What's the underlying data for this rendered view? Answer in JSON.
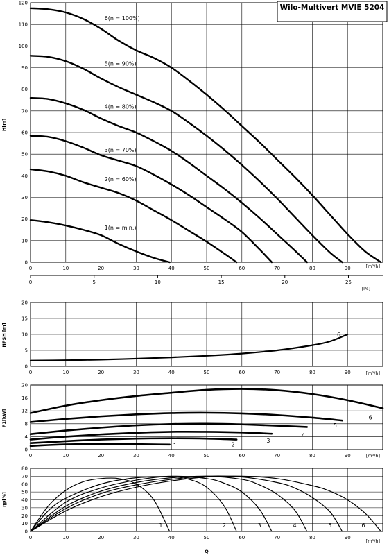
{
  "title": "Wilo-Multivert MVIE 5204",
  "x_unit": "[m³/h]",
  "ls_unit": "[l/s]",
  "q_label": "Q",
  "chart_data": [
    {
      "id": "head",
      "type": "line",
      "ylabel": "H[m]",
      "xlim": [
        0,
        100
      ],
      "ylim": [
        0,
        120
      ],
      "xticks": [
        0,
        10,
        20,
        30,
        40,
        50,
        60,
        70,
        80,
        90
      ],
      "yticks": [
        0,
        10,
        20,
        30,
        40,
        50,
        60,
        70,
        80,
        90,
        100,
        110,
        120
      ],
      "series": [
        {
          "name": "1(n = min.)",
          "label_at": [
            21,
            16
          ],
          "x": [
            0,
            5,
            10,
            15,
            20,
            25,
            30,
            35,
            39.5
          ],
          "y": [
            19.5,
            18.5,
            17,
            15,
            12.5,
            8.5,
            5,
            2,
            0
          ]
        },
        {
          "name": "2(n = 60%)",
          "label_at": [
            21,
            38.5
          ],
          "x": [
            0,
            5,
            10,
            15,
            20,
            25,
            30,
            35,
            40,
            45,
            50,
            55,
            58.5
          ],
          "y": [
            43,
            42,
            40,
            37,
            34.5,
            32,
            28.5,
            24,
            19.5,
            14.5,
            9.5,
            4,
            0
          ]
        },
        {
          "name": "3(n = 70%)",
          "label_at": [
            21,
            52
          ],
          "x": [
            0,
            5,
            10,
            15,
            20,
            25,
            30,
            35,
            40,
            45,
            50,
            55,
            60,
            65,
            68.5
          ],
          "y": [
            58.5,
            58,
            56,
            53,
            49.5,
            47,
            44.5,
            40.5,
            36,
            31,
            25.5,
            20,
            14,
            6,
            0
          ]
        },
        {
          "name": "4(n = 80%)",
          "label_at": [
            21,
            72
          ],
          "x": [
            0,
            5,
            10,
            15,
            20,
            25,
            30,
            35,
            40,
            45,
            50,
            55,
            60,
            65,
            70,
            75,
            78.5
          ],
          "y": [
            76,
            75.5,
            73.5,
            70.5,
            66.5,
            63,
            60,
            56,
            51.5,
            46,
            40,
            34,
            27.5,
            20.5,
            13,
            5.5,
            0
          ]
        },
        {
          "name": "5(n = 90%)",
          "label_at": [
            21,
            92
          ],
          "x": [
            0,
            5,
            10,
            15,
            20,
            25,
            30,
            35,
            40,
            45,
            50,
            55,
            60,
            65,
            70,
            75,
            80,
            85,
            88.5
          ],
          "y": [
            95.5,
            95,
            93,
            89.5,
            85,
            81,
            77.5,
            74,
            70,
            64.5,
            58.5,
            52,
            45,
            37.5,
            29.5,
            21,
            12.5,
            4.5,
            0
          ]
        },
        {
          "name": "6(n = 100%)",
          "label_at": [
            21,
            113
          ],
          "x": [
            0,
            5,
            10,
            15,
            20,
            25,
            30,
            35,
            40,
            45,
            50,
            55,
            60,
            65,
            70,
            75,
            80,
            85,
            90,
            95,
            99.5
          ],
          "y": [
            117.5,
            117,
            115.5,
            112.5,
            108,
            102.5,
            98,
            94.5,
            90,
            84,
            77.5,
            70.5,
            63,
            55.5,
            47.5,
            39.5,
            31,
            22,
            13,
            5,
            0
          ]
        }
      ]
    },
    {
      "id": "ls_axis",
      "type": "axis",
      "xlim": [
        0,
        27.7
      ],
      "xticks": [
        0,
        5,
        10,
        15,
        20,
        25
      ]
    },
    {
      "id": "npsh",
      "type": "line",
      "ylabel": "NPSH [m]",
      "xlim": [
        0,
        100
      ],
      "ylim": [
        0,
        20
      ],
      "xticks": [
        0,
        10,
        20,
        30,
        40,
        50,
        60,
        70,
        80,
        90
      ],
      "yticks": [
        0,
        5,
        10,
        15,
        20
      ],
      "series": [
        {
          "name": "6",
          "label_at": [
            87.5,
            10
          ],
          "x": [
            0,
            10,
            20,
            30,
            40,
            50,
            60,
            70,
            80,
            85,
            90
          ],
          "y": [
            1.8,
            1.9,
            2.1,
            2.4,
            2.8,
            3.3,
            4,
            5,
            6.6,
            7.8,
            10
          ]
        }
      ]
    },
    {
      "id": "power",
      "type": "line",
      "ylabel": "P1[kW]",
      "xlim": [
        0,
        100
      ],
      "ylim": [
        0,
        20
      ],
      "xticks": [
        0,
        10,
        20,
        30,
        40,
        50,
        60,
        70,
        80,
        90
      ],
      "yticks": [
        0,
        4,
        8,
        12,
        16,
        20
      ],
      "series": [
        {
          "name": "1",
          "label_at": [
            41,
            1.3
          ],
          "x": [
            0,
            5,
            10,
            15,
            20,
            25,
            30,
            35,
            39.5
          ],
          "y": [
            1.1,
            1.4,
            1.6,
            1.7,
            1.75,
            1.75,
            1.7,
            1.6,
            1.55
          ]
        },
        {
          "name": "2",
          "label_at": [
            57.5,
            1.6
          ],
          "x": [
            0,
            10,
            20,
            30,
            40,
            50,
            58.5
          ],
          "y": [
            2,
            2.6,
            3.1,
            3.4,
            3.5,
            3.4,
            3.1
          ]
        },
        {
          "name": "3",
          "label_at": [
            67.5,
            2.8
          ],
          "x": [
            0,
            10,
            20,
            30,
            40,
            50,
            60,
            68.5
          ],
          "y": [
            3.1,
            4,
            4.7,
            5.2,
            5.5,
            5.5,
            5.3,
            4.9
          ]
        },
        {
          "name": "4",
          "label_at": [
            77.5,
            4.5
          ],
          "x": [
            0,
            10,
            20,
            30,
            40,
            50,
            60,
            70,
            78.5
          ],
          "y": [
            4.8,
            5.9,
            6.8,
            7.5,
            7.9,
            8,
            7.8,
            7.4,
            7
          ]
        },
        {
          "name": "5",
          "label_at": [
            86.5,
            7.5
          ],
          "x": [
            0,
            10,
            20,
            30,
            40,
            50,
            60,
            70,
            80,
            88.5
          ],
          "y": [
            8.5,
            9.5,
            10.3,
            10.9,
            11.3,
            11.4,
            11.2,
            10.7,
            9.9,
            9
          ]
        },
        {
          "name": "6",
          "label_at": [
            96.5,
            10
          ],
          "x": [
            0,
            10,
            20,
            30,
            40,
            50,
            60,
            70,
            80,
            90,
            100
          ],
          "y": [
            11.3,
            13.6,
            15.3,
            16.6,
            17.6,
            18.5,
            18.8,
            18.4,
            17.2,
            15.3,
            12.8
          ]
        }
      ]
    },
    {
      "id": "efficiency",
      "type": "line",
      "ylabel": "ηp[%]",
      "xlabel": "Q",
      "xlim": [
        0,
        100
      ],
      "ylim": [
        0,
        80
      ],
      "xticks": [
        0,
        10,
        20,
        30,
        40,
        50,
        60,
        70,
        80,
        90
      ],
      "yticks": [
        0,
        10,
        20,
        30,
        40,
        50,
        60,
        70,
        80
      ],
      "series": [
        {
          "name": "1",
          "label_at": [
            37,
            8
          ],
          "x": [
            0,
            5,
            10,
            15,
            20,
            25,
            30,
            35,
            39.5
          ],
          "y": [
            0,
            32,
            52,
            63,
            67,
            67,
            60,
            40,
            0
          ]
        },
        {
          "name": "2",
          "label_at": [
            55,
            8
          ],
          "x": [
            0,
            5,
            10,
            20,
            30,
            40,
            45,
            50,
            55,
            58.5
          ],
          "y": [
            0,
            26,
            42,
            60,
            68,
            69,
            66,
            56,
            32,
            0
          ]
        },
        {
          "name": "3",
          "label_at": [
            65,
            8
          ],
          "x": [
            0,
            10,
            20,
            30,
            40,
            50,
            55,
            60,
            65,
            68.5
          ],
          "y": [
            0,
            37,
            55,
            65,
            70,
            67,
            61,
            50,
            28,
            0
          ]
        },
        {
          "name": "4",
          "label_at": [
            75,
            8
          ],
          "x": [
            0,
            10,
            20,
            30,
            40,
            50,
            60,
            65,
            70,
            75,
            78.5
          ],
          "y": [
            0,
            32,
            51,
            62,
            68,
            70,
            66,
            59,
            47,
            27,
            0
          ]
        },
        {
          "name": "5",
          "label_at": [
            85,
            8
          ],
          "x": [
            0,
            10,
            20,
            30,
            40,
            50,
            60,
            70,
            75,
            80,
            85,
            88.5
          ],
          "y": [
            0,
            29,
            48,
            59,
            66,
            70,
            69,
            62,
            55,
            43,
            25,
            0
          ]
        },
        {
          "name": "6",
          "label_at": [
            94.5,
            8
          ],
          "x": [
            0,
            10,
            20,
            30,
            40,
            50,
            60,
            70,
            80,
            85,
            90,
            95,
            99.5
          ],
          "y": [
            0,
            26,
            44,
            56,
            64,
            69,
            70,
            67,
            58,
            51,
            40,
            23,
            0
          ]
        }
      ]
    }
  ]
}
